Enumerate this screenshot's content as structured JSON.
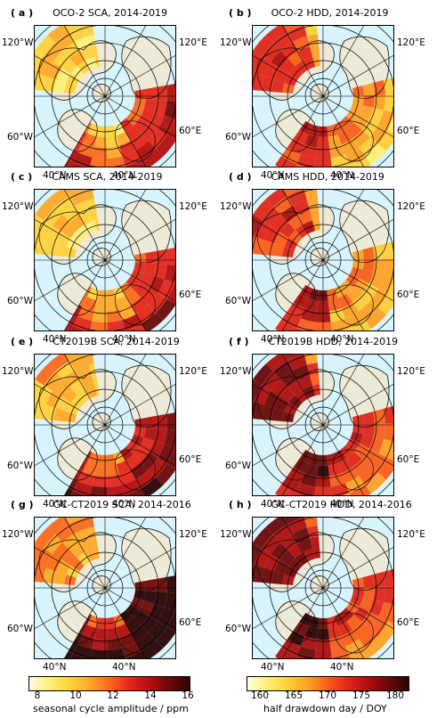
{
  "panels": [
    {
      "id": "a",
      "letter": "( a )",
      "title": "OCO-2 SCA, 2014-2019",
      "var": "sca"
    },
    {
      "id": "b",
      "letter": "( b )",
      "title": "OCO-2 HDD, 2014-2019",
      "var": "hdd"
    },
    {
      "id": "c",
      "letter": "( c )",
      "title": "CAMS SCA, 2014-2019",
      "var": "sca"
    },
    {
      "id": "d",
      "letter": "( d )",
      "title": "CAMS HDD, 2014-2019",
      "var": "hdd"
    },
    {
      "id": "e",
      "letter": "( e )",
      "title": "CT2019B SCA, 2014-2019",
      "var": "sca"
    },
    {
      "id": "f",
      "letter": "( f )",
      "title": "CT2019B HDD, 2014-2019",
      "var": "hdd"
    },
    {
      "id": "g",
      "letter": "( g )",
      "title": "GC-CT2019 SCA, 2014-2016",
      "var": "sca"
    },
    {
      "id": "h",
      "letter": "( h )",
      "title": "GC-CT2019 HDD, 2014-2016",
      "var": "hdd"
    }
  ],
  "tick_labels": {
    "lon_120w": "120°W",
    "lon_60w": "60°W",
    "lon_120e": "120°E",
    "lon_60e": "60°E",
    "lat_40n": "40°N"
  },
  "colorbars": {
    "sca": {
      "label": "seasonal cycle amplitude / ppm",
      "ticks": [
        "8",
        "10",
        "12",
        "14",
        "16"
      ],
      "min": 7,
      "max": 16
    },
    "hdd": {
      "label": "half drawdown day / DOY",
      "ticks": [
        "160",
        "165",
        "170",
        "175",
        "180"
      ],
      "min": 160,
      "max": 184
    }
  },
  "colors": {
    "ocean": "#d8f4fc",
    "land": "#eeead8",
    "grid": "#000000"
  }
}
